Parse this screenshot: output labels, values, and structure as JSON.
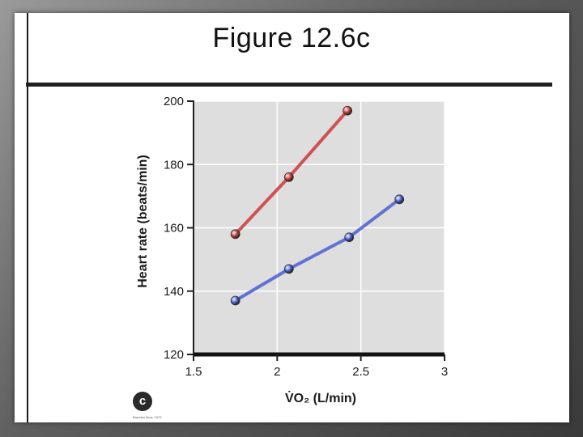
{
  "slide": {
    "title": "Figure 12.6c",
    "panel_badge": "c",
    "credit": "Brandon Bros. 1972"
  },
  "colors": {
    "series_red": "#cc3a3a",
    "series_blue": "#4a5fd0",
    "plot_bg": "#dedede",
    "grid": "#ffffff"
  },
  "chart_data": {
    "type": "line",
    "title": "",
    "xlabel": "V̇O₂ (L/min)",
    "ylabel": "Heart rate (beats/min)",
    "xlim": [
      1.5,
      3
    ],
    "ylim": [
      120,
      200
    ],
    "x_ticks": [
      1.5,
      2,
      2.5,
      3
    ],
    "x_tick_labels": [
      "1.5",
      "2",
      "2.5",
      "3"
    ],
    "y_ticks": [
      120,
      140,
      160,
      180,
      200
    ],
    "y_tick_labels": [
      "120",
      "140",
      "160",
      "180",
      "200"
    ],
    "grid": true,
    "series": [
      {
        "color": "#cc3a3a",
        "x": [
          1.75,
          2.07,
          2.42
        ],
        "y": [
          158,
          176,
          197
        ]
      },
      {
        "color": "#4a5fd0",
        "x": [
          1.75,
          2.07,
          2.43,
          2.73
        ],
        "y": [
          137,
          147,
          157,
          169
        ]
      }
    ]
  }
}
